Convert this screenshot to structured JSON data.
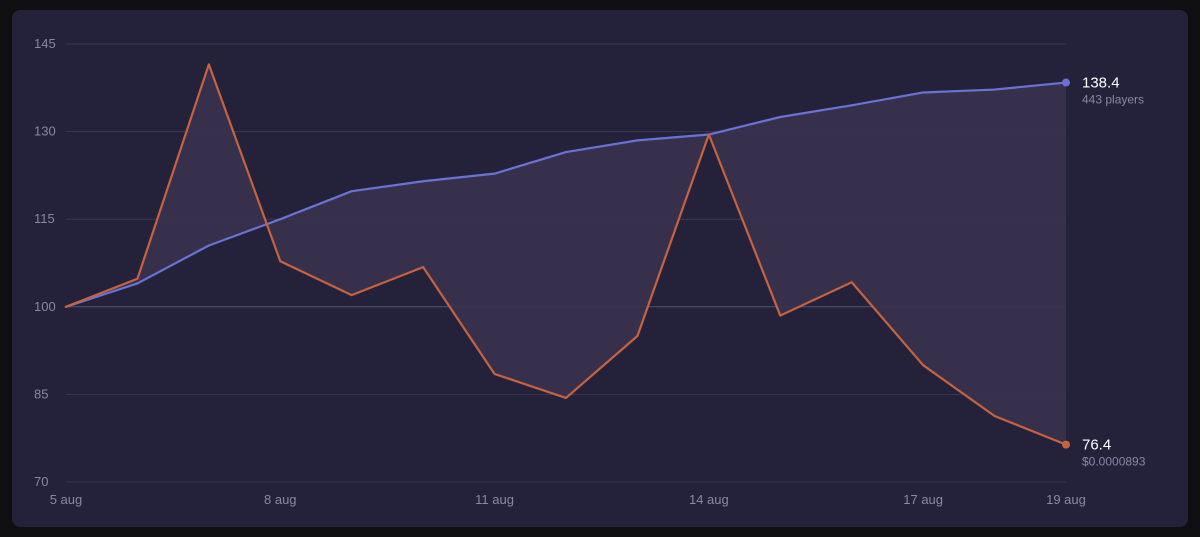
{
  "chart_data": {
    "type": "line",
    "x": [
      "5 aug",
      "6 aug",
      "7 aug",
      "8 aug",
      "9 aug",
      "10 aug",
      "11 aug",
      "12 aug",
      "13 aug",
      "14 aug",
      "15 aug",
      "16 aug",
      "17 aug",
      "18 aug",
      "19 aug"
    ],
    "x_tick_labels": [
      "5 aug",
      "8 aug",
      "11 aug",
      "14 aug",
      "17 aug",
      "19 aug"
    ],
    "y_ticks": [
      70,
      85,
      100,
      115,
      130,
      145
    ],
    "ylim": [
      70,
      145
    ],
    "baseline": 100,
    "grid": true,
    "fill_between_series": true,
    "series": [
      {
        "color": "#6b72d6",
        "values": [
          100,
          104,
          110.5,
          115,
          119.8,
          121.5,
          122.8,
          126.5,
          128.5,
          129.5,
          132.5,
          134.5,
          136.7,
          137.2,
          138.4
        ],
        "end_value": "138.4",
        "end_label": "443 players"
      },
      {
        "color": "#c8623e",
        "values": [
          100,
          104.8,
          141.5,
          107.8,
          102,
          106.8,
          88.5,
          84.4,
          95,
          129.5,
          98.5,
          104.2,
          90,
          81.3,
          76.4
        ],
        "end_value": "76.4",
        "end_label": "$0.0000893"
      }
    ]
  },
  "colors": {
    "background": "#24223a",
    "fill": "#3a3350",
    "grid": "#3a3852",
    "baseline": "#55516e",
    "tick_text": "#8a86a8"
  }
}
